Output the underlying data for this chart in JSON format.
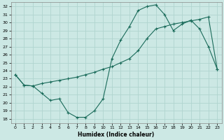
{
  "xlabel": "Humidex (Indice chaleur)",
  "ylabel": "",
  "bg_color": "#cce8e4",
  "grid_color": "#b0d4cf",
  "line_color": "#1a6b5a",
  "xlim": [
    -0.5,
    23.5
  ],
  "ylim": [
    17.5,
    32.5
  ],
  "xticks": [
    0,
    1,
    2,
    3,
    4,
    5,
    6,
    7,
    8,
    9,
    10,
    11,
    12,
    13,
    14,
    15,
    16,
    17,
    18,
    19,
    20,
    21,
    22,
    23
  ],
  "yticks": [
    18,
    19,
    20,
    21,
    22,
    23,
    24,
    25,
    26,
    27,
    28,
    29,
    30,
    31,
    32
  ],
  "line1_x": [
    0,
    1,
    2,
    3,
    4,
    5,
    6,
    7,
    8,
    9,
    10,
    11,
    12,
    13,
    14,
    15,
    16,
    17,
    18,
    19,
    20,
    21,
    22,
    23
  ],
  "line1_y": [
    23.5,
    22.2,
    22.1,
    21.2,
    20.3,
    20.5,
    18.8,
    18.2,
    18.2,
    19.0,
    20.5,
    25.5,
    27.8,
    29.5,
    31.5,
    32.0,
    32.2,
    31.0,
    29.0,
    29.8,
    30.3,
    29.2,
    27.0,
    24.2
  ],
  "line2_x": [
    0,
    1,
    2,
    3,
    4,
    5,
    6,
    7,
    8,
    9,
    10,
    11,
    12,
    13,
    14,
    15,
    16,
    17,
    18,
    19,
    20,
    21,
    22,
    23
  ],
  "line2_y": [
    23.5,
    22.2,
    22.1,
    22.4,
    22.6,
    22.8,
    23.0,
    23.2,
    23.5,
    23.8,
    24.2,
    24.5,
    25.0,
    25.5,
    26.5,
    28.0,
    29.2,
    29.5,
    29.8,
    30.0,
    30.2,
    30.4,
    30.7,
    24.2
  ]
}
